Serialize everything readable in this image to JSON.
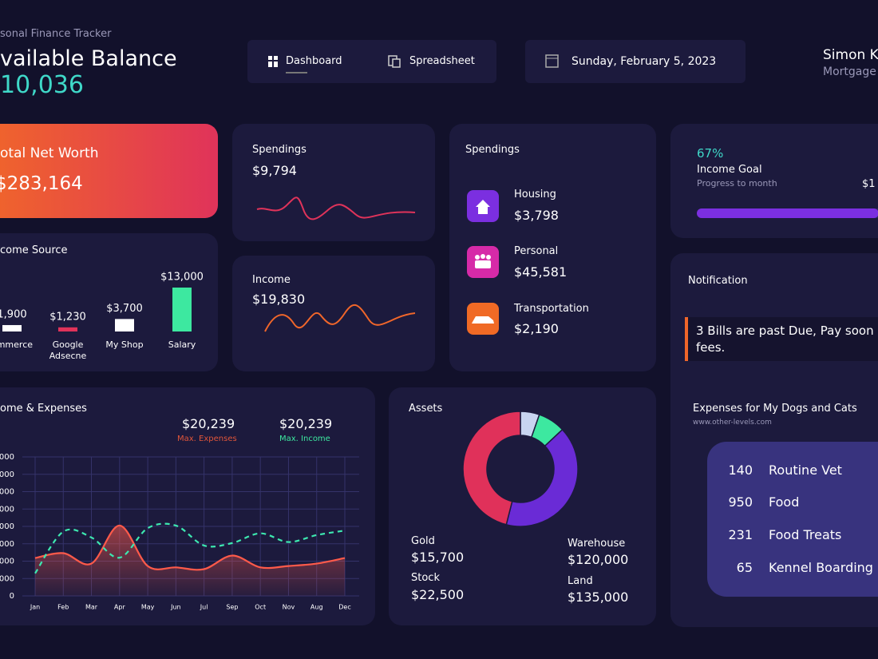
{
  "header": {
    "app_title": "sonal Finance Tracker",
    "balance_label": "vailable Balance",
    "balance_value": "10,036",
    "nav": [
      "Dashboard",
      "Spreadsheet"
    ],
    "date": "Sunday, February 5, 2023",
    "user_name": "Simon K",
    "user_role": "Mortgage"
  },
  "net_worth": {
    "label": "otal Net Worth",
    "value": "$283,164"
  },
  "spendings_card": {
    "title": "Spendings",
    "value": "$9,794"
  },
  "income_card": {
    "title": "Income",
    "value": "$19,830"
  },
  "spendings_breakdown": {
    "title": "Spendings",
    "items": [
      {
        "label": "Housing",
        "value": "$3,798"
      },
      {
        "label": "Personal",
        "value": "$45,581"
      },
      {
        "label": "Transportation",
        "value": "$2,190"
      }
    ]
  },
  "income_goal": {
    "progress": {
      "value": 67,
      "label": "67%"
    },
    "title": "Income Goal",
    "subtitle": "Progress to month",
    "amount": "$1"
  },
  "notification": {
    "title": "Notification",
    "message": [
      "3 Bills are past Due, Pay soon",
      "fees."
    ]
  },
  "pets": {
    "title": "Expenses for My Dogs and Cats",
    "source": "www.other-levels.com",
    "rows": [
      {
        "count": 140,
        "label": "Routine Vet"
      },
      {
        "count": 950,
        "label": "Food"
      },
      {
        "count": 231,
        "label": "Food Treats"
      },
      {
        "count": 65,
        "label": "Kennel Boarding"
      }
    ]
  },
  "chart_data": [
    {
      "type": "bar",
      "title": "come Source",
      "categories": [
        "ommerce",
        "Google Adsecne",
        "My Shop",
        "Salary"
      ],
      "values": [
        1900,
        1230,
        3700,
        13000
      ],
      "value_labels": [
        "1,900",
        "$1,230",
        "$3,700",
        "$13,000"
      ],
      "colors": [
        "#ffffff",
        "#e0335a",
        "#ffffff",
        "#3de8a0"
      ]
    },
    {
      "type": "line",
      "title": "ome & Expenses",
      "annotations": [
        {
          "value": "$20,239",
          "label": "Max. Expenses",
          "color": "#e0553a"
        },
        {
          "value": "$20,239",
          "label": "Max. Income",
          "color": "#3de8a0"
        }
      ],
      "categories": [
        "Jan",
        "Feb",
        "Mar",
        "Apr",
        "May",
        "Jun",
        "Jul",
        "Sep",
        "Oct",
        "Nov",
        "Aug",
        "Dec"
      ],
      "series": [
        {
          "color": "#ff5a4a",
          "area": true,
          "dashed": false,
          "values": [
            10900,
            12300,
            9300,
            20239,
            8600,
            8200,
            7700,
            11600,
            8200,
            8600,
            9300,
            10900
          ]
        },
        {
          "color": "#3de8b0",
          "area": false,
          "dashed": true,
          "values": [
            6500,
            18500,
            16800,
            11000,
            19500,
            20239,
            14500,
            15200,
            18000,
            15500,
            17500,
            18800
          ]
        }
      ],
      "ylim": [
        0,
        40000
      ],
      "yticks": [
        0,
        {
          "value": 5000,
          "label": "000"
        },
        {
          "value": 10000,
          "label": "000"
        },
        {
          "value": 15000,
          "label": "000"
        },
        {
          "value": 20000,
          "label": "000"
        },
        {
          "value": 25000,
          "label": "000"
        },
        {
          "value": 30000,
          "label": "000"
        },
        {
          "value": 35000,
          "label": "000"
        },
        {
          "value": 40000,
          "label": "000"
        }
      ],
      "grid": true
    },
    {
      "type": "pie",
      "title": "Assets",
      "donut": true,
      "categories": [
        "Gold",
        "Stock",
        "Warehouse",
        "Land"
      ],
      "values": [
        15700,
        22500,
        120000,
        135000
      ],
      "value_labels": [
        "$15,700",
        "$22,500",
        "$120,000",
        "$135,000"
      ],
      "colors": [
        "#c8d4f0",
        "#3de8a0",
        "#6a2bd6",
        "#e0315a"
      ]
    }
  ]
}
